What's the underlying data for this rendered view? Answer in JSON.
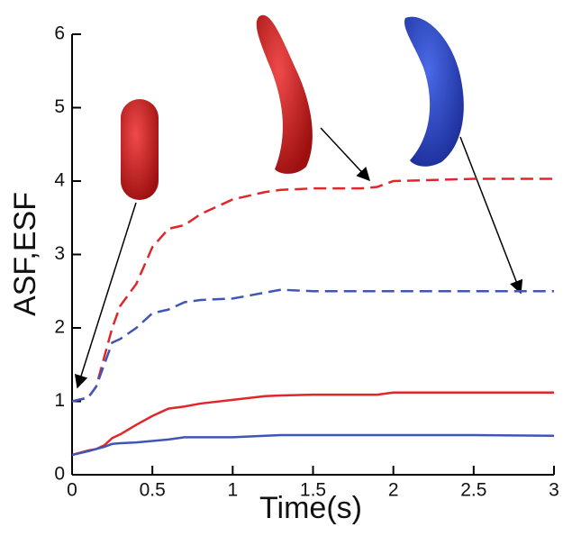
{
  "chart_data": {
    "type": "line",
    "x_label": "Time(s)",
    "y_label": "ASF,ESF",
    "x": [
      0,
      0.1,
      0.15,
      0.2,
      0.25,
      0.3,
      0.4,
      0.5,
      0.6,
      0.7,
      0.8,
      1.0,
      1.2,
      1.3,
      1.5,
      1.8,
      1.9,
      2.0,
      2.5,
      3.0
    ],
    "series": [
      {
        "color": "#e0262b",
        "dashed": true,
        "values": [
          1.0,
          1.05,
          1.2,
          1.6,
          2.0,
          2.3,
          2.6,
          3.1,
          3.35,
          3.4,
          3.55,
          3.75,
          3.85,
          3.88,
          3.9,
          3.9,
          3.92,
          4.0,
          4.03,
          4.03
        ]
      },
      {
        "color": "#3f56b5",
        "dashed": true,
        "values": [
          1.0,
          1.05,
          1.2,
          1.5,
          1.8,
          1.85,
          2.0,
          2.2,
          2.25,
          2.35,
          2.38,
          2.4,
          2.48,
          2.52,
          2.5,
          2.5,
          2.5,
          2.5,
          2.5,
          2.5
        ]
      },
      {
        "color": "#e0262b",
        "dashed": false,
        "values": [
          0.27,
          0.33,
          0.35,
          0.4,
          0.5,
          0.55,
          0.68,
          0.8,
          0.9,
          0.93,
          0.97,
          1.02,
          1.07,
          1.08,
          1.09,
          1.09,
          1.09,
          1.12,
          1.12,
          1.12
        ]
      },
      {
        "color": "#3f56b5",
        "dashed": false,
        "values": [
          0.27,
          0.32,
          0.35,
          0.38,
          0.42,
          0.43,
          0.44,
          0.46,
          0.48,
          0.51,
          0.51,
          0.51,
          0.53,
          0.54,
          0.54,
          0.54,
          0.54,
          0.54,
          0.54,
          0.53
        ]
      }
    ],
    "xlim": [
      0,
      3
    ],
    "xticks": [
      0,
      0.5,
      1,
      1.5,
      2,
      2.5,
      3
    ],
    "ylim": [
      0,
      6
    ],
    "yticks": [
      0,
      1,
      2,
      3,
      4,
      5,
      6
    ],
    "grid": false
  }
}
